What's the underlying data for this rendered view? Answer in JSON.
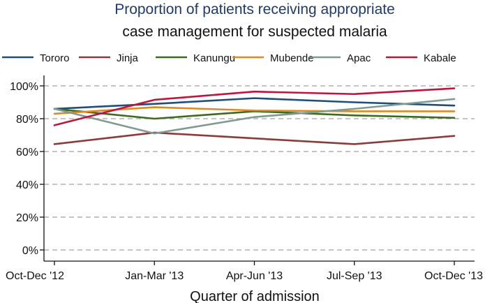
{
  "chart_data": {
    "type": "line",
    "title": "Proportion of patients receiving appropriate",
    "subtitle": "case management for suspected malaria",
    "xlabel": "Quarter of admission",
    "ylabel": "",
    "categories": [
      "Oct-Dec '12",
      "Jan-Mar '13",
      "Apr-Jun '13",
      "Jul-Sep '13",
      "Oct-Dec '13"
    ],
    "ylim": [
      0,
      100
    ],
    "yticks": [
      0,
      20,
      40,
      60,
      80,
      100
    ],
    "ytick_labels": [
      "0%",
      "20%",
      "40%",
      "60%",
      "80%",
      "100%"
    ],
    "grid": true,
    "legend_position": "top",
    "series": [
      {
        "name": "Tororo",
        "color": "#1f4e79",
        "values": [
          86,
          89,
          92.5,
          90,
          88
        ]
      },
      {
        "name": "Jinja",
        "color": "#8c3b3b",
        "values": [
          64.5,
          71.5,
          68,
          64.5,
          69.5
        ]
      },
      {
        "name": "Kanungu",
        "color": "#3f6b1f",
        "values": [
          86,
          80,
          84.5,
          82,
          80.5
        ]
      },
      {
        "name": "Mubende",
        "color": "#e08a1e",
        "values": [
          83,
          87,
          85,
          84.5,
          84.5
        ]
      },
      {
        "name": "Apac",
        "color": "#7f9a90",
        "values": [
          86,
          71,
          81,
          86,
          92
        ]
      },
      {
        "name": "Kabale",
        "color": "#c0143c",
        "values": [
          76,
          91.5,
          96.5,
          95,
          98.5
        ]
      }
    ]
  }
}
